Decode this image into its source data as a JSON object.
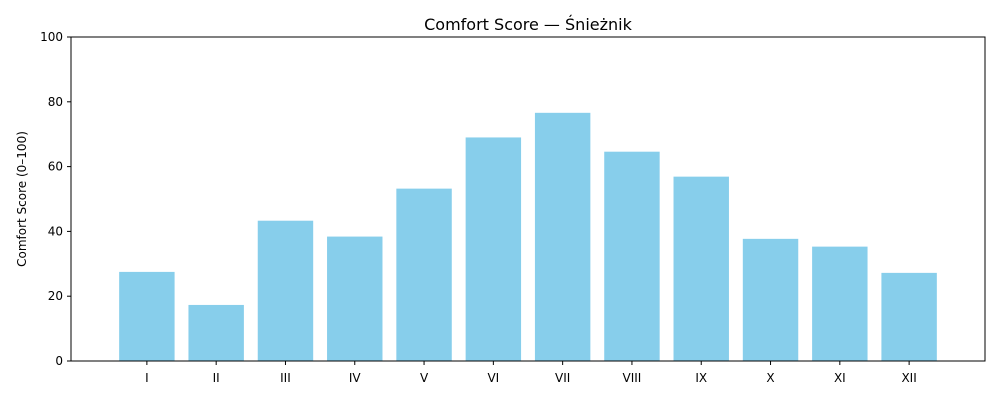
{
  "chart_data": {
    "type": "bar",
    "title": "Comfort Score — Śnieżnik",
    "xlabel": "",
    "ylabel": "Comfort Score (0–100)",
    "categories": [
      "I",
      "II",
      "III",
      "IV",
      "V",
      "VI",
      "VII",
      "VIII",
      "IX",
      "X",
      "XI",
      "XII"
    ],
    "values": [
      27.5,
      17.3,
      43.3,
      38.4,
      53.2,
      69.0,
      76.6,
      64.6,
      56.9,
      37.7,
      35.3,
      27.2
    ],
    "ylim": [
      0,
      100
    ],
    "yticks": [
      0,
      20,
      40,
      60,
      80,
      100
    ],
    "bar_color": "#87ceeb",
    "grid": false,
    "legend": "none"
  }
}
